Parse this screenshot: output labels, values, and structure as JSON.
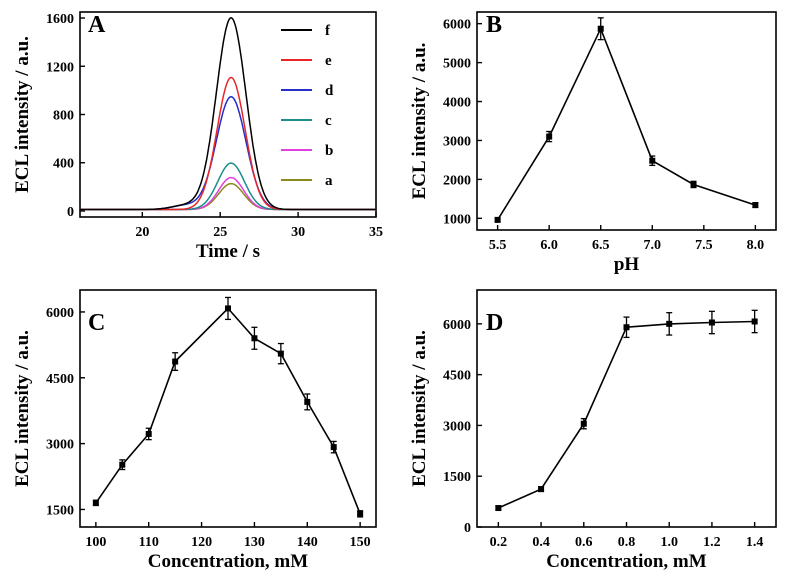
{
  "chart_data": [
    {
      "type": "line",
      "panel": "A",
      "xlabel": "Time / s",
      "ylabel": "ECL intensity / a.u.",
      "xlim": [
        16,
        35
      ],
      "ylim": [
        -50,
        1650
      ],
      "xticks": [
        20,
        25,
        30,
        35
      ],
      "yticks": [
        0,
        400,
        800,
        1200,
        1600
      ],
      "legend_position": "top-right",
      "series": [
        {
          "name": "f",
          "color": "#000000",
          "peak_x": 25.7,
          "peak_y": 1590
        },
        {
          "name": "e",
          "color": "#e8262a",
          "peak_x": 25.7,
          "peak_y": 1095
        },
        {
          "name": "d",
          "color": "#2430c8",
          "peak_x": 25.7,
          "peak_y": 935
        },
        {
          "name": "c",
          "color": "#1a8f8a",
          "peak_x": 25.7,
          "peak_y": 385
        },
        {
          "name": "b",
          "color": "#e040e0",
          "peak_x": 25.7,
          "peak_y": 265
        },
        {
          "name": "a",
          "color": "#8a8a1e",
          "peak_x": 25.7,
          "peak_y": 215
        }
      ]
    },
    {
      "type": "line",
      "panel": "B",
      "xlabel": "pH",
      "ylabel": "ECL intensity / a.u.",
      "xlim": [
        5.3,
        8.2
      ],
      "ylim": [
        700,
        6300
      ],
      "xticks": [
        "5.5",
        "6.0",
        "6.5",
        "7.0",
        "7.5",
        "8.0"
      ],
      "yticks": [
        1000,
        2000,
        3000,
        4000,
        5000,
        6000
      ],
      "x": [
        5.5,
        6.0,
        6.5,
        7.0,
        7.4,
        8.0
      ],
      "values": [
        960,
        3100,
        5870,
        2480,
        1870,
        1340
      ],
      "errors": [
        40,
        130,
        280,
        120,
        80,
        60
      ]
    },
    {
      "type": "line",
      "panel": "C",
      "xlabel": "Concentration, mM",
      "ylabel": "ECL intensity / a.u.",
      "xlim": [
        97,
        153
      ],
      "ylim": [
        1100,
        6500
      ],
      "xticks": [
        100,
        110,
        120,
        130,
        140,
        150
      ],
      "yticks": [
        1500,
        3000,
        4500,
        6000
      ],
      "x": [
        100,
        105,
        110,
        115,
        125,
        130,
        135,
        140,
        145,
        150
      ],
      "values": [
        1650,
        2520,
        3220,
        4870,
        6080,
        5400,
        5050,
        3950,
        2920,
        1400
      ],
      "errors": [
        60,
        110,
        130,
        200,
        250,
        250,
        230,
        180,
        130,
        70
      ]
    },
    {
      "type": "line",
      "panel": "D",
      "xlabel": "Concentration, mM",
      "ylabel": "ECL intensity / a.u.",
      "xlim": [
        0.1,
        1.5
      ],
      "ylim": [
        0,
        7000
      ],
      "xticks": [
        "0.2",
        "0.4",
        "0.6",
        "0.8",
        "1.0",
        "1.2",
        "1.4"
      ],
      "yticks": [
        0,
        1500,
        3000,
        4500,
        6000
      ],
      "x": [
        0.2,
        0.4,
        0.6,
        0.8,
        1.0,
        1.2,
        1.4
      ],
      "values": [
        560,
        1120,
        3050,
        5900,
        6000,
        6040,
        6070
      ],
      "errors": [
        60,
        70,
        150,
        300,
        330,
        330,
        330
      ]
    }
  ]
}
